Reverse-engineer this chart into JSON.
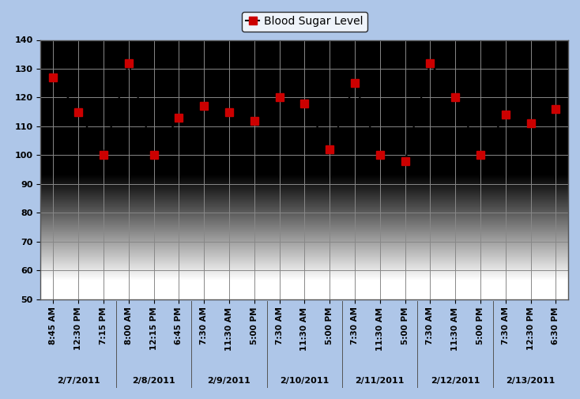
{
  "title": "Blood Sugar Level",
  "x_labels": [
    "8:45 AM",
    "12:30 PM",
    "7:15 PM",
    "8:00 AM",
    "12:15 PM",
    "6:45 PM",
    "7:30 AM",
    "11:30 AM",
    "5:00 PM",
    "7:30 AM",
    "11:30 AM",
    "5:00 PM",
    "7:30 AM",
    "11:30 AM",
    "5:00 PM",
    "7:30 AM",
    "11:30 AM",
    "5:00 PM",
    "7:30 AM",
    "12:30 PM",
    "6:30 PM"
  ],
  "date_labels": [
    "2/7/2011",
    "2/8/2011",
    "2/9/2011",
    "2/10/2011",
    "2/11/2011",
    "2/12/2011",
    "2/13/2011"
  ],
  "date_positions": [
    1,
    4,
    7,
    10,
    13,
    16,
    19
  ],
  "values": [
    127,
    115,
    100,
    132,
    100,
    113,
    117,
    115,
    112,
    120,
    118,
    102,
    125,
    100,
    98,
    132,
    120,
    100,
    114,
    111,
    116
  ],
  "ylim": [
    50,
    140
  ],
  "yticks": [
    50,
    60,
    70,
    80,
    90,
    100,
    110,
    120,
    130,
    140
  ],
  "line_color": "#000000",
  "marker_color": "#cc0000",
  "grid_color": "#888888",
  "border_color": "#aec6e8",
  "title_fontsize": 10,
  "tick_fontsize": 7.5
}
